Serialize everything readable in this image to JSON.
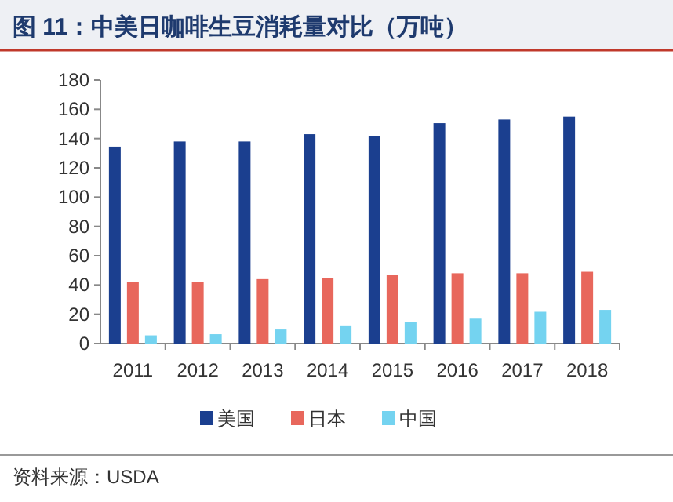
{
  "chart_data": {
    "type": "bar",
    "title": "图 11：中美日咖啡生豆消耗量对比（万吨）",
    "categories": [
      "2011",
      "2012",
      "2013",
      "2014",
      "2015",
      "2016",
      "2017",
      "2018"
    ],
    "series": [
      {
        "name": "美国",
        "color": "#1b3f8f",
        "values": [
          134.5,
          138,
          138,
          143,
          141.5,
          150.5,
          153,
          155
        ]
      },
      {
        "name": "日本",
        "color": "#e8675c",
        "values": [
          42,
          42,
          44,
          45,
          47,
          48,
          48,
          49
        ]
      },
      {
        "name": "中国",
        "color": "#74d3f0",
        "values": [
          5.6,
          6.4,
          9.6,
          12.4,
          14.5,
          17,
          21.7,
          23
        ]
      }
    ],
    "ylim": [
      0,
      180
    ],
    "yticks": [
      0,
      20,
      40,
      60,
      80,
      100,
      120,
      140,
      160,
      180
    ],
    "grid": false,
    "legend": "bottom",
    "annotations": [
      "资料来源：USDA"
    ]
  }
}
